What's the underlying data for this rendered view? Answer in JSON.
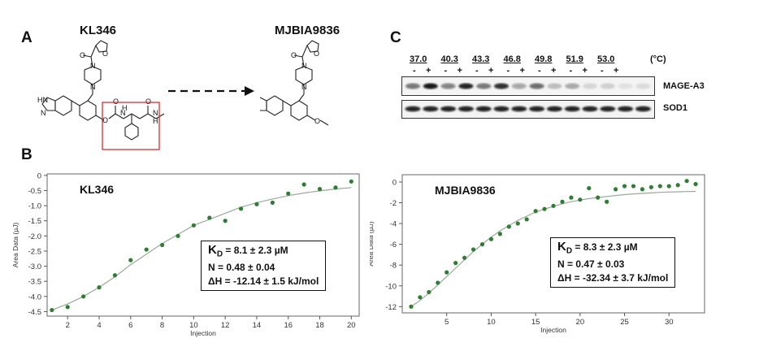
{
  "panels": {
    "A": {
      "letter": "A",
      "compound_left": "KL346",
      "compound_right": "MJBIA9836"
    },
    "C": {
      "letter": "C",
      "temperatures": [
        "37.0",
        "40.3",
        "43.3",
        "46.8",
        "49.8",
        "51.9",
        "53.0"
      ],
      "temp_unit": "(°C)",
      "signs": [
        "-",
        "+"
      ],
      "bands": [
        "MAGE-A3",
        "SOD1"
      ]
    },
    "B": {
      "letter": "B"
    }
  },
  "chart_data": [
    {
      "type": "scatter",
      "title": "KL346",
      "xlabel": "Injection",
      "ylabel": "Area Data (µJ)",
      "xlim": [
        0.7,
        20.5
      ],
      "ylim": [
        -4.65,
        0.05
      ],
      "xticks": [
        2,
        4,
        6,
        8,
        10,
        12,
        14,
        16,
        18,
        20
      ],
      "yticks": [
        0,
        -0.5,
        -1.0,
        -1.5,
        -2.0,
        -2.5,
        -3.0,
        -3.5,
        -4.0,
        -4.5
      ],
      "ytick_labels": [
        "0",
        "-0.5",
        "-1.0",
        "-1.5",
        "-2.0",
        "-2.5",
        "-3.0",
        "-3.5",
        "-4.0",
        "-4.5"
      ],
      "points": {
        "x": [
          1,
          2,
          3,
          4,
          5,
          6,
          7,
          8,
          9,
          10,
          11,
          12,
          13,
          14,
          15,
          16,
          17,
          18,
          19,
          20
        ],
        "y": [
          -4.45,
          -4.35,
          -4.0,
          -3.7,
          -3.3,
          -2.8,
          -2.45,
          -2.3,
          -2.0,
          -1.65,
          -1.4,
          -1.5,
          -1.1,
          -0.95,
          -0.9,
          -0.6,
          -0.3,
          -0.45,
          -0.4,
          -0.2
        ]
      },
      "fit": {
        "x": [
          1,
          2,
          3,
          4,
          5,
          6,
          7,
          8,
          9,
          10,
          11,
          12,
          13,
          14,
          15,
          16,
          17,
          18,
          19,
          20
        ],
        "y": [
          -4.45,
          -4.25,
          -4.0,
          -3.7,
          -3.35,
          -2.95,
          -2.6,
          -2.25,
          -1.95,
          -1.65,
          -1.45,
          -1.25,
          -1.05,
          -0.9,
          -0.78,
          -0.67,
          -0.58,
          -0.51,
          -0.45,
          -0.4
        ]
      },
      "stats": {
        "kd_symbol": "K",
        "kd_sub": "D",
        "kd_rest": " = 8.1 ± 2.3 µM",
        "n": "N = 0.48 ± 0.04",
        "dh": "ΔH = -12.14 ± 1.5 kJ/mol"
      },
      "color": "#2e7d32",
      "fit_color": "#9aa89a",
      "grid": false
    },
    {
      "type": "scatter",
      "title": "MJBIA9836",
      "xlabel": "Injection",
      "ylabel": "Area Data (µJ)",
      "xlim": [
        0,
        34
      ],
      "ylim": [
        -12.6,
        0.7
      ],
      "xticks": [
        5,
        10,
        15,
        20,
        25,
        30
      ],
      "yticks": [
        0,
        -2,
        -4,
        -6,
        -8,
        -10,
        -12
      ],
      "ytick_labels": [
        "0",
        "-2",
        "-4",
        "-6",
        "-8",
        "-10",
        "-12"
      ],
      "points": {
        "x": [
          1,
          2,
          3,
          4,
          5,
          6,
          7,
          8,
          9,
          10,
          11,
          12,
          13,
          14,
          15,
          16,
          17,
          18,
          19,
          20,
          21,
          22,
          23,
          24,
          25,
          26,
          27,
          28,
          29,
          30,
          31,
          32,
          33
        ],
        "y": [
          -12.0,
          -11.1,
          -10.6,
          -9.7,
          -8.7,
          -7.8,
          -7.3,
          -6.5,
          -6.0,
          -5.5,
          -5.0,
          -4.3,
          -4.0,
          -3.6,
          -2.8,
          -2.6,
          -2.3,
          -1.9,
          -1.5,
          -1.7,
          -0.6,
          -1.5,
          -1.9,
          -0.7,
          -0.4,
          -0.4,
          -0.7,
          -0.5,
          -0.4,
          -0.4,
          -0.3,
          0.1,
          -0.2
        ]
      },
      "fit": {
        "x": [
          1,
          2,
          3,
          4,
          5,
          6,
          7,
          8,
          9,
          10,
          11,
          12,
          13,
          14,
          15,
          16,
          17,
          18,
          19,
          20,
          21,
          22,
          23,
          24,
          25,
          26,
          27,
          28,
          29,
          30,
          31,
          32,
          33
        ],
        "y": [
          -12.0,
          -11.4,
          -10.7,
          -9.9,
          -9.1,
          -8.3,
          -7.5,
          -6.7,
          -6.0,
          -5.3,
          -4.7,
          -4.2,
          -3.7,
          -3.3,
          -2.9,
          -2.6,
          -2.35,
          -2.1,
          -1.9,
          -1.75,
          -1.6,
          -1.5,
          -1.4,
          -1.3,
          -1.22,
          -1.15,
          -1.1,
          -1.05,
          -1.0,
          -0.97,
          -0.94,
          -0.92,
          -0.9
        ]
      },
      "stats": {
        "kd_symbol": "K",
        "kd_sub": "D",
        "kd_rest": " = 8.3 ± 2.3 µM",
        "n": "N = 0.47 ± 0.03",
        "dh": "ΔH = -32.34 ± 3.7 kJ/mol"
      },
      "color": "#2e7d32",
      "fit_color": "#9aa89a",
      "grid": false
    }
  ]
}
